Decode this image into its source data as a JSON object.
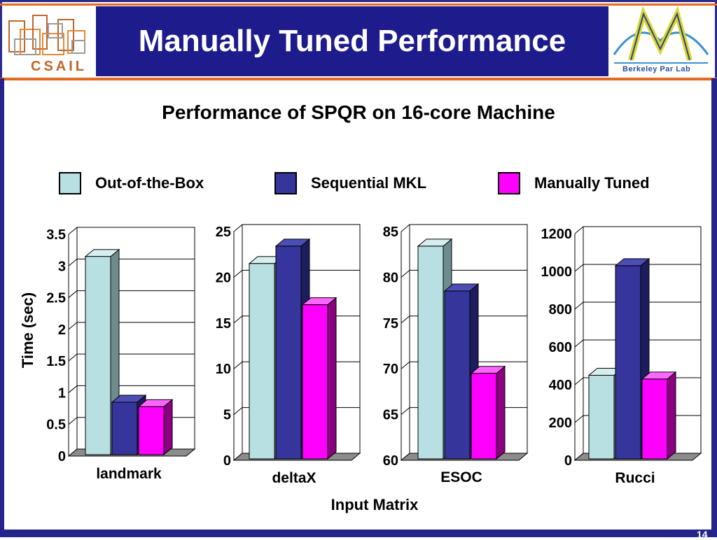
{
  "slide": {
    "title": "Manually Tuned Performance",
    "left_logo_text": "CSAIL",
    "right_logo_text": "Berkeley Par Lab",
    "page_number": "14"
  },
  "colors": {
    "title_band": "#1e1b8c",
    "accent_line": "#e36a1f",
    "out_of_box": "#b8dfe1",
    "sequential_mkl": "#35359b",
    "manually_tuned": "#ff00ff"
  },
  "chart_data": {
    "type": "bar",
    "title": "Performance of SPQR on 16-core Machine",
    "xlabel": "Input Matrix",
    "ylabel": "Time (sec)",
    "legend": [
      {
        "name": "Out-of-the-Box",
        "color": "#b8dfe1"
      },
      {
        "name": "Sequential MKL",
        "color": "#35359b"
      },
      {
        "name": "Manually Tuned",
        "color": "#ff00ff"
      }
    ],
    "legend_position": "top",
    "grid": true,
    "panels": [
      {
        "category": "landmark",
        "ylim": [
          0,
          3.5
        ],
        "yticks": [
          "0",
          "0.5",
          "1",
          "1.5",
          "2",
          "2.5",
          "3",
          "3.5"
        ],
        "values": [
          3.15,
          0.85,
          0.78
        ]
      },
      {
        "category": "deltaX",
        "ylim": [
          0,
          25
        ],
        "yticks": [
          "0",
          "5",
          "10",
          "15",
          "20",
          "25"
        ],
        "values": [
          21.5,
          23.4,
          17.0
        ]
      },
      {
        "category": "ESOC",
        "ylim": [
          60,
          85
        ],
        "yticks": [
          "60",
          "65",
          "70",
          "75",
          "80",
          "85"
        ],
        "values": [
          83.4,
          78.5,
          69.5
        ]
      },
      {
        "category": "Rucci",
        "ylim": [
          0,
          1200
        ],
        "yticks": [
          "0",
          "200",
          "400",
          "600",
          "800",
          "1000",
          "1200"
        ],
        "values": [
          450,
          1030,
          430
        ]
      }
    ]
  }
}
